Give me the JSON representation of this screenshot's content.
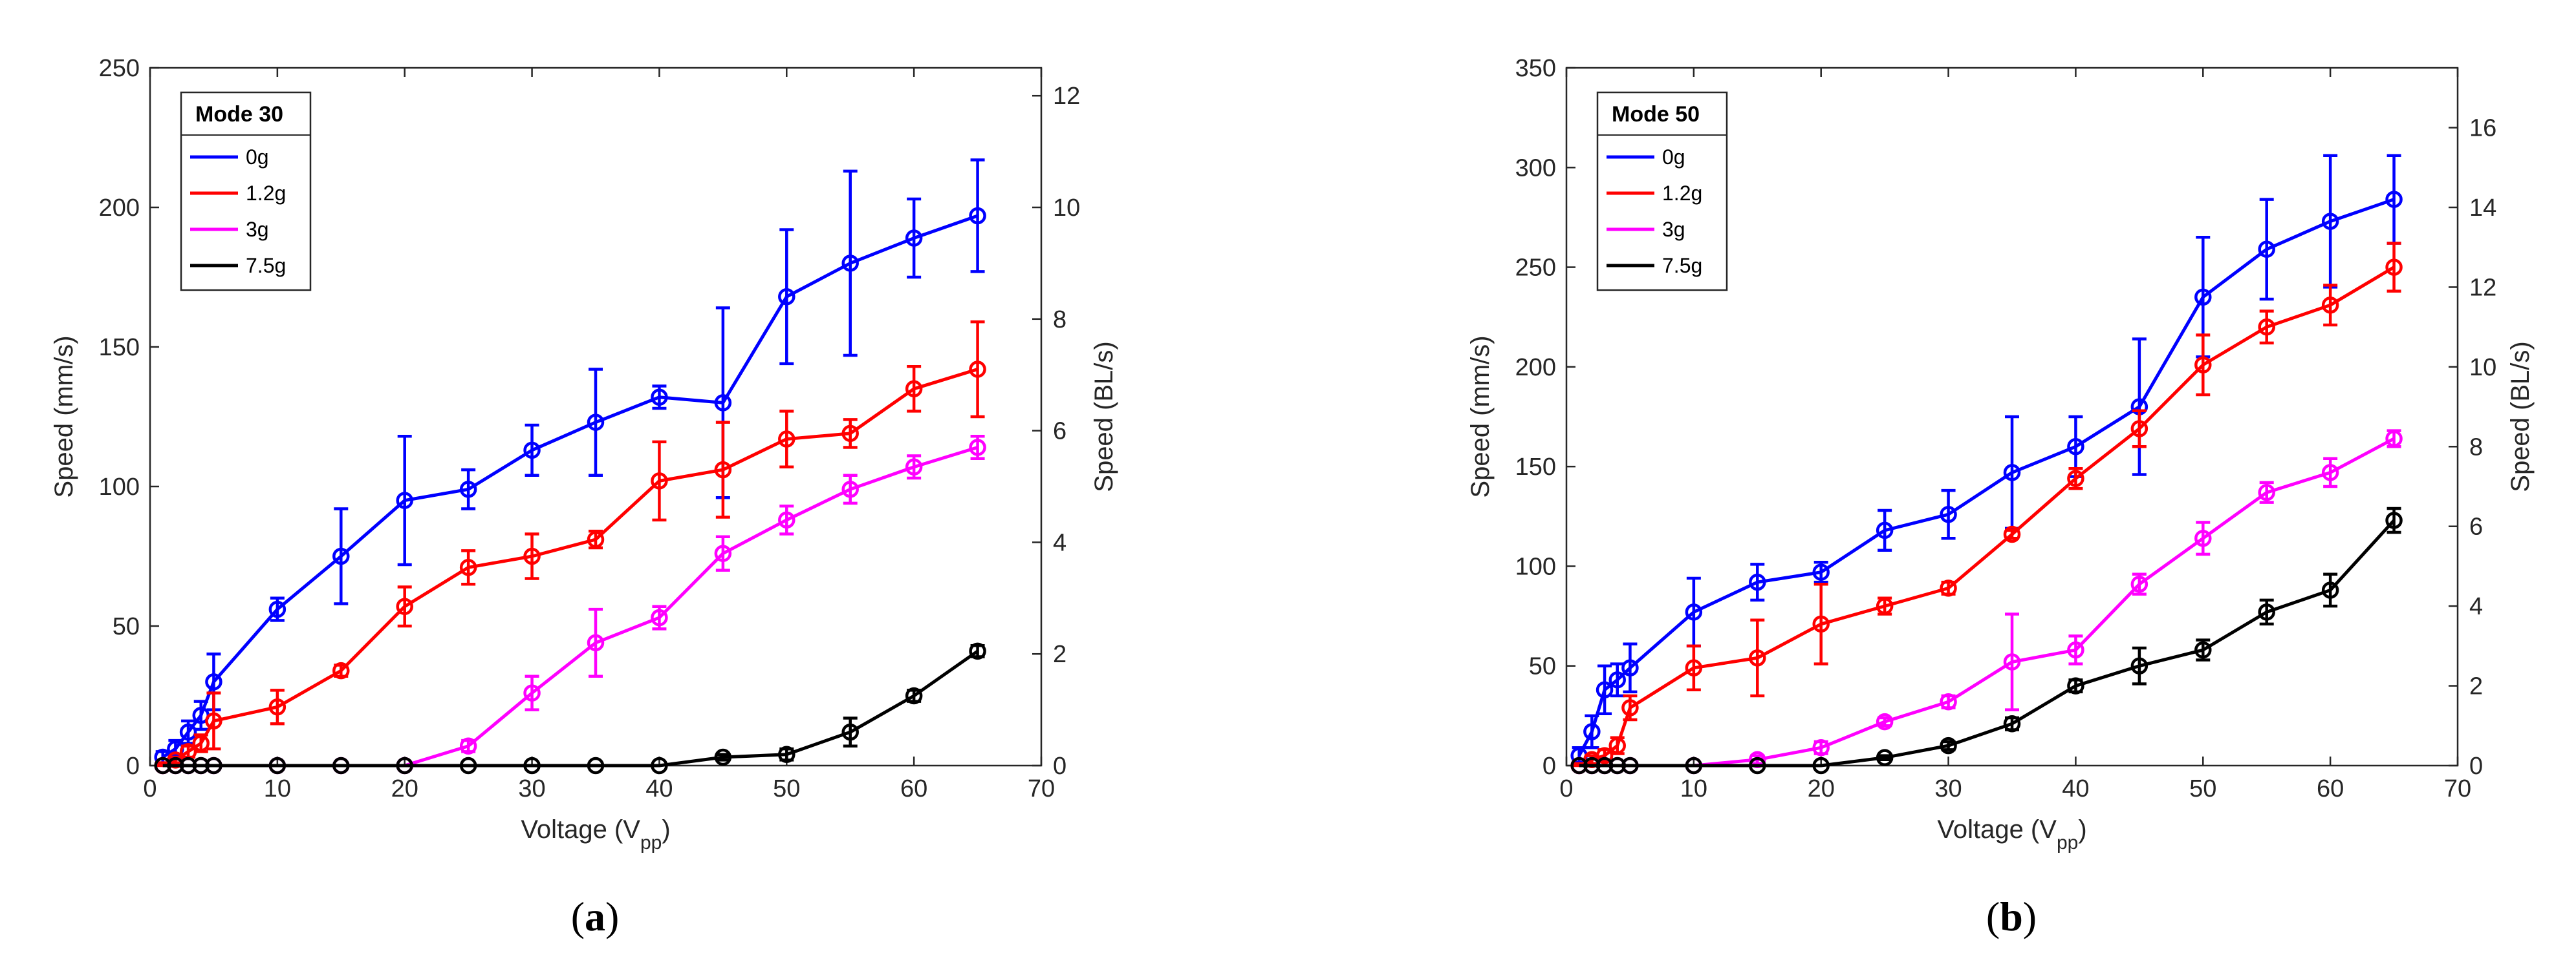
{
  "chart_data": [
    {
      "type": "line",
      "caption_letter": "a",
      "legend_title": "Mode 30",
      "xlabel": "Voltage (V",
      "xlabel_sub": "pp",
      "xlabel_close": ")",
      "ylabel": "Speed (mm/s)",
      "y2label": "Speed (BL/s)",
      "xlim": [
        0,
        70
      ],
      "ylim": [
        0,
        250
      ],
      "y2lim": [
        0,
        12.5
      ],
      "xticks": [
        0,
        10,
        20,
        30,
        40,
        50,
        60,
        70
      ],
      "yticks": [
        0,
        50,
        100,
        150,
        200,
        250
      ],
      "y2ticks": [
        0,
        2,
        4,
        6,
        8,
        10,
        12
      ],
      "legend_position": "top-left",
      "grid": false,
      "series": [
        {
          "name": "0g",
          "color": "#0000ff",
          "x": [
            1,
            2,
            3,
            4,
            5,
            10,
            15,
            20,
            25,
            30,
            35,
            40,
            45,
            50,
            55,
            60,
            65
          ],
          "y": [
            3,
            6,
            12,
            18,
            30,
            56,
            75,
            95,
            99,
            113,
            123,
            132,
            130,
            168,
            180,
            189,
            197
          ],
          "err": [
            2,
            3,
            4,
            5,
            10,
            4,
            17,
            23,
            7,
            9,
            19,
            4,
            34,
            24,
            33,
            14,
            20
          ]
        },
        {
          "name": "1.2g",
          "color": "#ff0000",
          "x": [
            1,
            2,
            3,
            4,
            5,
            10,
            15,
            20,
            25,
            30,
            35,
            40,
            45,
            50,
            55,
            60,
            65
          ],
          "y": [
            0,
            2,
            5,
            8,
            16,
            21,
            34,
            57,
            71,
            75,
            81,
            102,
            106,
            117,
            119,
            135,
            142
          ],
          "err": [
            1,
            1,
            2,
            3,
            10,
            6,
            2,
            7,
            6,
            8,
            3,
            14,
            17,
            10,
            5,
            8,
            17
          ]
        },
        {
          "name": "3g",
          "color": "#ff00ff",
          "x": [
            1,
            2,
            3,
            4,
            5,
            10,
            15,
            20,
            25,
            30,
            35,
            40,
            45,
            50,
            55,
            60,
            65
          ],
          "y": [
            0,
            0,
            0,
            0,
            0,
            0,
            0,
            0,
            7,
            26,
            44,
            53,
            76,
            88,
            99,
            107,
            114
          ],
          "err": [
            0,
            0,
            0,
            0,
            0,
            0,
            0,
            0,
            2,
            6,
            12,
            4,
            6,
            5,
            5,
            4,
            4
          ]
        },
        {
          "name": "7.5g",
          "color": "#000000",
          "x": [
            1,
            2,
            3,
            4,
            5,
            10,
            15,
            20,
            25,
            30,
            35,
            40,
            45,
            50,
            55,
            60,
            65
          ],
          "y": [
            0,
            0,
            0,
            0,
            0,
            0,
            0,
            0,
            0,
            0,
            0,
            0,
            3,
            4,
            12,
            25,
            41
          ],
          "err": [
            0,
            0,
            0,
            0,
            0,
            0,
            0,
            0,
            0,
            0,
            0,
            0,
            1,
            2,
            5,
            2,
            2
          ]
        }
      ]
    },
    {
      "type": "line",
      "caption_letter": "b",
      "legend_title": "Mode 50",
      "xlabel": "Voltage (V",
      "xlabel_sub": "pp",
      "xlabel_close": ")",
      "ylabel": "Speed (mm/s)",
      "y2label": "Speed (BL/s)",
      "xlim": [
        0,
        70
      ],
      "ylim": [
        0,
        350
      ],
      "y2lim": [
        0,
        17.5
      ],
      "xticks": [
        0,
        10,
        20,
        30,
        40,
        50,
        60,
        70
      ],
      "yticks": [
        0,
        50,
        100,
        150,
        200,
        250,
        300,
        350
      ],
      "y2ticks": [
        0,
        2,
        4,
        6,
        8,
        10,
        12,
        14,
        16
      ],
      "legend_position": "top-left",
      "grid": false,
      "series": [
        {
          "name": "0g",
          "color": "#0000ff",
          "x": [
            1,
            2,
            3,
            4,
            5,
            10,
            15,
            20,
            25,
            30,
            35,
            40,
            45,
            50,
            55,
            60,
            65
          ],
          "y": [
            5,
            17,
            38,
            43,
            49,
            77,
            92,
            97,
            118,
            126,
            147,
            160,
            180,
            235,
            259,
            273,
            284
          ],
          "err": [
            4,
            8,
            12,
            8,
            12,
            17,
            9,
            5,
            10,
            12,
            28,
            15,
            34,
            30,
            25,
            33,
            22
          ]
        },
        {
          "name": "1.2g",
          "color": "#ff0000",
          "x": [
            1,
            2,
            3,
            4,
            5,
            10,
            15,
            20,
            25,
            30,
            35,
            40,
            45,
            50,
            55,
            60,
            65
          ],
          "y": [
            0,
            3,
            5,
            10,
            29,
            49,
            54,
            71,
            80,
            89,
            116,
            144,
            169,
            201,
            220,
            231,
            250
          ],
          "err": [
            1,
            2,
            3,
            4,
            6,
            11,
            19,
            20,
            4,
            3,
            2,
            5,
            9,
            15,
            8,
            10,
            12
          ]
        },
        {
          "name": "3g",
          "color": "#ff00ff",
          "x": [
            1,
            2,
            3,
            4,
            5,
            10,
            15,
            20,
            25,
            30,
            35,
            40,
            45,
            50,
            55,
            60,
            65
          ],
          "y": [
            0,
            0,
            0,
            0,
            0,
            0,
            3,
            9,
            22,
            32,
            52,
            58,
            91,
            114,
            137,
            147,
            164
          ],
          "err": [
            0,
            0,
            0,
            0,
            0,
            0,
            2,
            3,
            2,
            3,
            24,
            7,
            5,
            8,
            5,
            7,
            4
          ]
        },
        {
          "name": "7.5g",
          "color": "#000000",
          "x": [
            1,
            2,
            3,
            4,
            5,
            10,
            15,
            20,
            25,
            30,
            35,
            40,
            45,
            50,
            55,
            60,
            65
          ],
          "y": [
            0,
            0,
            0,
            0,
            0,
            0,
            0,
            0,
            4,
            10,
            21,
            40,
            50,
            58,
            77,
            88,
            123
          ],
          "err": [
            0,
            0,
            0,
            0,
            0,
            0,
            0,
            0,
            1,
            2,
            3,
            3,
            9,
            5,
            6,
            8,
            6
          ]
        }
      ]
    }
  ]
}
